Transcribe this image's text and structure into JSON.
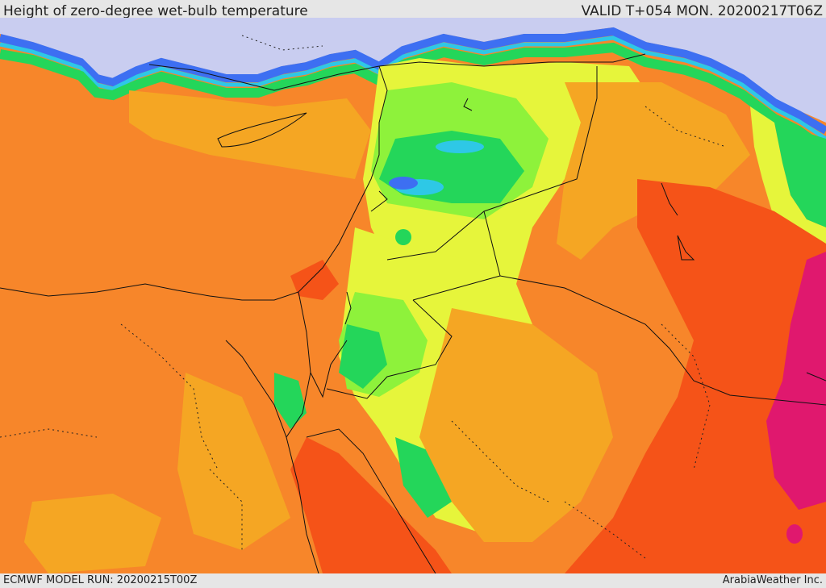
{
  "title": "Height of zero-degree wet-bulb temperature",
  "valid": "VALID T+054 MON. 20200217T06Z",
  "model_run": "ECMWF MODEL RUN: 20200215T00Z",
  "brand": "ArabiaWeather Inc.",
  "colors": {
    "sea_cold": "#c9cdf0",
    "blue": "#3d6ff2",
    "cyan": "#2ec8e6",
    "green": "#24d65a",
    "light_green": "#8ef23b",
    "yellow": "#e6f53b",
    "light_orange": "#f5a623",
    "orange": "#f7862a",
    "red_orange": "#f55318",
    "magenta": "#e0186e"
  }
}
